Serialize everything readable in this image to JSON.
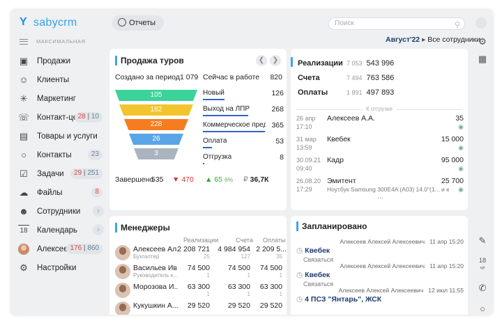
{
  "app": {
    "logo_text": "sabycrm",
    "subtitle": "МАКСИМАЛЬНАЯ"
  },
  "sidebar": {
    "items": [
      {
        "label": "Продажи"
      },
      {
        "label": "Клиенты"
      },
      {
        "label": "Маркетинг"
      },
      {
        "label": "Контакт-це",
        "b1": "28",
        "b2": "10"
      },
      {
        "label": "Товары и услуги"
      },
      {
        "label": "Контакты",
        "b2": "23"
      },
      {
        "label": "Задачи",
        "b1": "29",
        "b2": "251"
      },
      {
        "label": "Файлы",
        "b1": "8"
      },
      {
        "label": "Сотрудники",
        "chev": "›"
      },
      {
        "label": "Календарь",
        "chev": "›",
        "icon": "18"
      },
      {
        "label": "Алексеев",
        "b1": "176",
        "b2": "860"
      },
      {
        "label": "Настройки"
      }
    ]
  },
  "topbar": {
    "reports": "Отчеты",
    "search_placeholder": "Поиск",
    "period": "Август'22",
    "employees": "Все сотрудники"
  },
  "rightbar": {
    "date_day": "18",
    "date_wd": "чт"
  },
  "tours": {
    "title": "Продажа туров",
    "created_label": "Создано за период",
    "created_value": "1 079",
    "inwork_label": "Сейчас в работе",
    "inwork_value": "820",
    "funnel": [
      {
        "value": "105",
        "color": "#3bd39a"
      },
      {
        "value": "182",
        "color": "#f2c52e"
      },
      {
        "value": "228",
        "color": "#f57c1f"
      },
      {
        "value": "26",
        "color": "#5aa5e8"
      },
      {
        "value": "3",
        "color": "#a9b4bf"
      }
    ],
    "stages": [
      {
        "name": "Новый",
        "value": "126",
        "fill": 0.31
      },
      {
        "name": "Выход на ЛПР",
        "value": "268",
        "fill": 0.65
      },
      {
        "name": "Коммерческое пред...",
        "value": "365",
        "fill": 0.89
      },
      {
        "name": "Оплата",
        "value": "53",
        "fill": 0.13
      },
      {
        "name": "Отгрузка",
        "value": "8",
        "fill": 0.02
      }
    ],
    "done_label": "Завершено",
    "done_value": "535",
    "lost": "470",
    "won": "65",
    "won_pct": "6%",
    "revenue": "36,7К"
  },
  "summary": {
    "rows": [
      {
        "label": "Реализации",
        "count": "7 053",
        "value": "543 996"
      },
      {
        "label": "Счета",
        "count": "7 494",
        "value": "763 586"
      },
      {
        "label": "Оплаты",
        "count": "1 891",
        "value": "497 893"
      }
    ],
    "separator": "К отгрузке",
    "deals": [
      {
        "d1": "26 апр",
        "d2": "17:10",
        "name": "Алексеев А.А.",
        "amount": "35",
        "sub": ""
      },
      {
        "d1": "31 мар",
        "d2": "13:59",
        "name": "Квебек",
        "amount": "15 000",
        "sub": ""
      },
      {
        "d1": "30.09.21",
        "d2": "09:40",
        "name": "Кадр",
        "amount": "95 000",
        "sub": ""
      },
      {
        "d1": "26.08.20",
        "d2": "17:29",
        "name": "Эмитент",
        "amount": "25 700",
        "sub": "Ноутбук Samsung 300E4A (A03) 14.0\"(1... и еще 1"
      }
    ],
    "more": "..."
  },
  "managers": {
    "title": "Менеджеры",
    "cols": [
      "Реализации",
      "Счета",
      "Оплаты"
    ],
    "rows": [
      {
        "name": "Алексеев Ал...",
        "role": "Бухгалтер",
        "v1": "2 208 721",
        "c1": "25",
        "v2": "4 984 954",
        "c2": "127",
        "v3": "2 209 5...",
        "c3": "35"
      },
      {
        "name": "Васильев Ив...",
        "role": "Руководитель к...",
        "v1": "74 500",
        "c1": "1",
        "v2": "74 500",
        "c2": "1",
        "v3": "74 500",
        "c3": "1"
      },
      {
        "name": "Морозова И...",
        "role": "",
        "v1": "63 300",
        "c1": "1",
        "v2": "63 300",
        "c2": "1",
        "v3": "63 300",
        "c3": "1"
      },
      {
        "name": "Кукушкин А...",
        "role": "",
        "v1": "29 520",
        "c1": "",
        "v2": "29 520",
        "c2": "",
        "v3": "29 520",
        "c3": ""
      }
    ]
  },
  "planned": {
    "title": "Запланировано",
    "items": [
      {
        "who": "Алексеев Алексей Алексеевич",
        "when": "11 апр 15:20",
        "title": "Квебек",
        "desc": "Связаться"
      },
      {
        "who": "Алексеев Алексей Алексеевич",
        "when": "11 апр 15:20",
        "title": "Квебек",
        "desc": "Связаться"
      },
      {
        "who": "Алексеев Алексей Алексеевич",
        "when": "12 июл 11:55",
        "title": "4 ПСЗ \"Янтарь\", ЖСК",
        "desc": ""
      }
    ]
  }
}
